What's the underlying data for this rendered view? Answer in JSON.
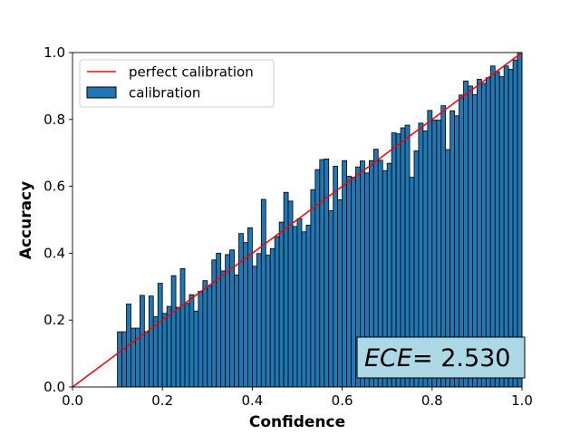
{
  "chart_data": {
    "type": "bar",
    "xlabel": "Confidence",
    "ylabel": "Accuracy",
    "xlim": [
      0.0,
      1.0
    ],
    "ylim": [
      0.0,
      1.0
    ],
    "xticks": [
      "0.0",
      "0.2",
      "0.4",
      "0.6",
      "0.8",
      "1.0"
    ],
    "yticks": [
      "0.0",
      "0.2",
      "0.4",
      "0.6",
      "0.8",
      "1.0"
    ],
    "grid": false,
    "legend_position": "upper-left",
    "legend": [
      {
        "label": "perfect calibration",
        "kind": "line",
        "color": "#ff0000"
      },
      {
        "label": "calibration",
        "kind": "patch",
        "color": "#1f77b4"
      }
    ],
    "annotation": {
      "label": "ECE",
      "value": "= 2.530",
      "box_color": "#add8e6",
      "position": "lower-right"
    },
    "bar_color": "#1f77b4",
    "bar_edge_color": "#000000",
    "bin_width": 0.01,
    "series": [
      {
        "name": "calibration",
        "x_start": [
          0.1,
          0.11,
          0.12,
          0.13,
          0.14,
          0.15,
          0.16,
          0.17,
          0.18,
          0.19,
          0.2,
          0.21,
          0.22,
          0.23,
          0.24,
          0.25,
          0.26,
          0.27,
          0.28,
          0.29,
          0.3,
          0.31,
          0.32,
          0.33,
          0.34,
          0.35,
          0.36,
          0.37,
          0.38,
          0.39,
          0.4,
          0.41,
          0.42,
          0.43,
          0.44,
          0.45,
          0.46,
          0.47,
          0.48,
          0.49,
          0.5,
          0.51,
          0.52,
          0.53,
          0.54,
          0.55,
          0.56,
          0.57,
          0.58,
          0.59,
          0.6,
          0.61,
          0.62,
          0.63,
          0.64,
          0.65,
          0.66,
          0.67,
          0.68,
          0.69,
          0.7,
          0.71,
          0.72,
          0.73,
          0.74,
          0.75,
          0.76,
          0.77,
          0.78,
          0.79,
          0.8,
          0.81,
          0.82,
          0.83,
          0.84,
          0.85,
          0.86,
          0.87,
          0.88,
          0.89,
          0.9,
          0.91,
          0.92,
          0.93,
          0.94,
          0.95,
          0.96,
          0.97,
          0.98,
          0.99
        ],
        "values": [
          0.165,
          0.165,
          0.248,
          0.176,
          0.176,
          0.274,
          0.165,
          0.272,
          0.21,
          0.31,
          0.22,
          0.241,
          0.333,
          0.238,
          0.354,
          0.25,
          0.276,
          0.227,
          0.286,
          0.318,
          0.302,
          0.38,
          0.4,
          0.347,
          0.396,
          0.41,
          0.335,
          0.459,
          0.432,
          0.476,
          0.361,
          0.399,
          0.561,
          0.394,
          0.414,
          0.45,
          0.493,
          0.582,
          0.556,
          0.48,
          0.503,
          0.464,
          0.484,
          0.59,
          0.65,
          0.68,
          0.682,
          0.527,
          0.66,
          0.56,
          0.677,
          0.63,
          0.627,
          0.658,
          0.676,
          0.64,
          0.677,
          0.711,
          0.678,
          0.647,
          0.669,
          0.76,
          0.757,
          0.775,
          0.783,
          0.627,
          0.706,
          0.789,
          0.766,
          0.827,
          0.798,
          0.798,
          0.841,
          0.71,
          0.826,
          0.811,
          0.873,
          0.915,
          0.9,
          0.874,
          0.92,
          0.908,
          0.925,
          0.96,
          0.943,
          0.928,
          0.96,
          0.95,
          0.978,
          1.0
        ]
      }
    ]
  }
}
